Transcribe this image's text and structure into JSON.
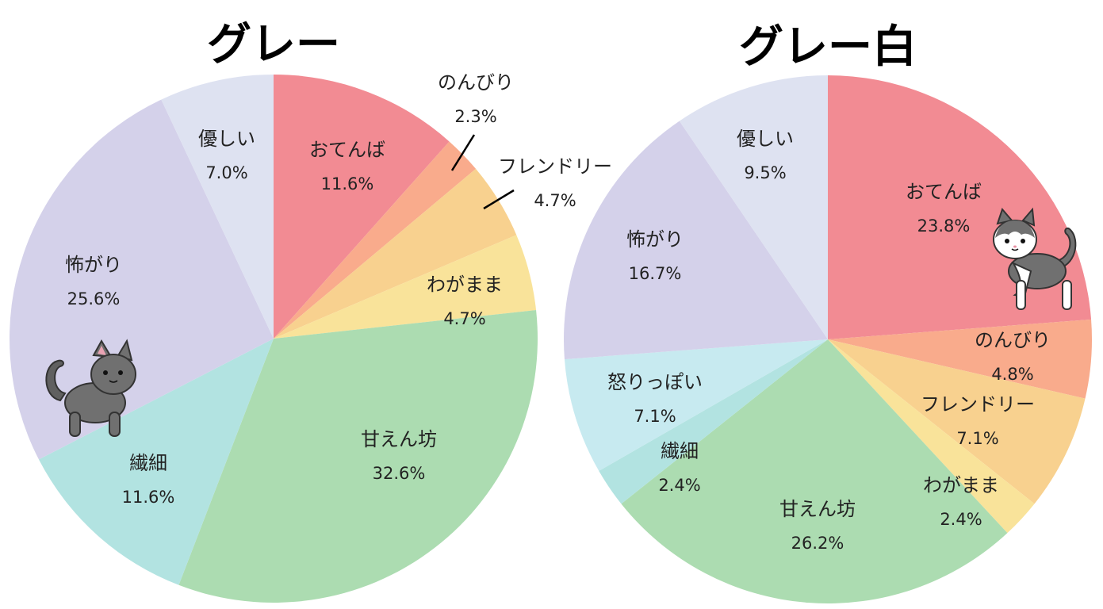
{
  "chart_data": [
    {
      "type": "pie",
      "title": "グレー",
      "slices": [
        {
          "label": "おてんば",
          "value": 11.6,
          "value_label": "11.6%",
          "color": "#f28b93"
        },
        {
          "label": "のんびり",
          "value": 2.3,
          "value_label": "2.3%",
          "color": "#f9ab8c"
        },
        {
          "label": "フレンドリー",
          "value": 4.7,
          "value_label": "4.7%",
          "color": "#f8d18f"
        },
        {
          "label": "わがまま",
          "value": 4.7,
          "value_label": "4.7%",
          "color": "#f9e39a"
        },
        {
          "label": "甘えん坊",
          "value": 32.6,
          "value_label": "32.6%",
          "color": "#acdcb1"
        },
        {
          "label": "繊細",
          "value": 11.6,
          "value_label": "11.6%",
          "color": "#b2e3e1"
        },
        {
          "label": "怖がり",
          "value": 25.6,
          "value_label": "25.6%",
          "color": "#d4d1ea"
        },
        {
          "label": "優しい",
          "value": 7.0,
          "value_label": "7.0%",
          "color": "#dee2f1"
        }
      ]
    },
    {
      "type": "pie",
      "title": "グレー白",
      "slices": [
        {
          "label": "おてんば",
          "value": 23.8,
          "value_label": "23.8%",
          "color": "#f28b93"
        },
        {
          "label": "のんびり",
          "value": 4.8,
          "value_label": "4.8%",
          "color": "#f9ab8c"
        },
        {
          "label": "フレンドリー",
          "value": 7.1,
          "value_label": "7.1%",
          "color": "#f8d18f"
        },
        {
          "label": "わがまま",
          "value": 2.4,
          "value_label": "2.4%",
          "color": "#f9e39a"
        },
        {
          "label": "甘えん坊",
          "value": 26.2,
          "value_label": "26.2%",
          "color": "#acdcb1"
        },
        {
          "label": "繊細",
          "value": 2.4,
          "value_label": "2.4%",
          "color": "#b2e3e1"
        },
        {
          "label": "怒りっぽい",
          "value": 7.1,
          "value_label": "7.1%",
          "color": "#c7eaf0"
        },
        {
          "label": "怖がり",
          "value": 16.7,
          "value_label": "16.7%",
          "color": "#d4d1ea"
        },
        {
          "label": "優しい",
          "value": 9.5,
          "value_label": "9.5%",
          "color": "#dee2f1"
        }
      ]
    }
  ],
  "decorations": {
    "left_cat": "gray-cat-icon",
    "right_cat": "gray-white-cat-icon"
  }
}
